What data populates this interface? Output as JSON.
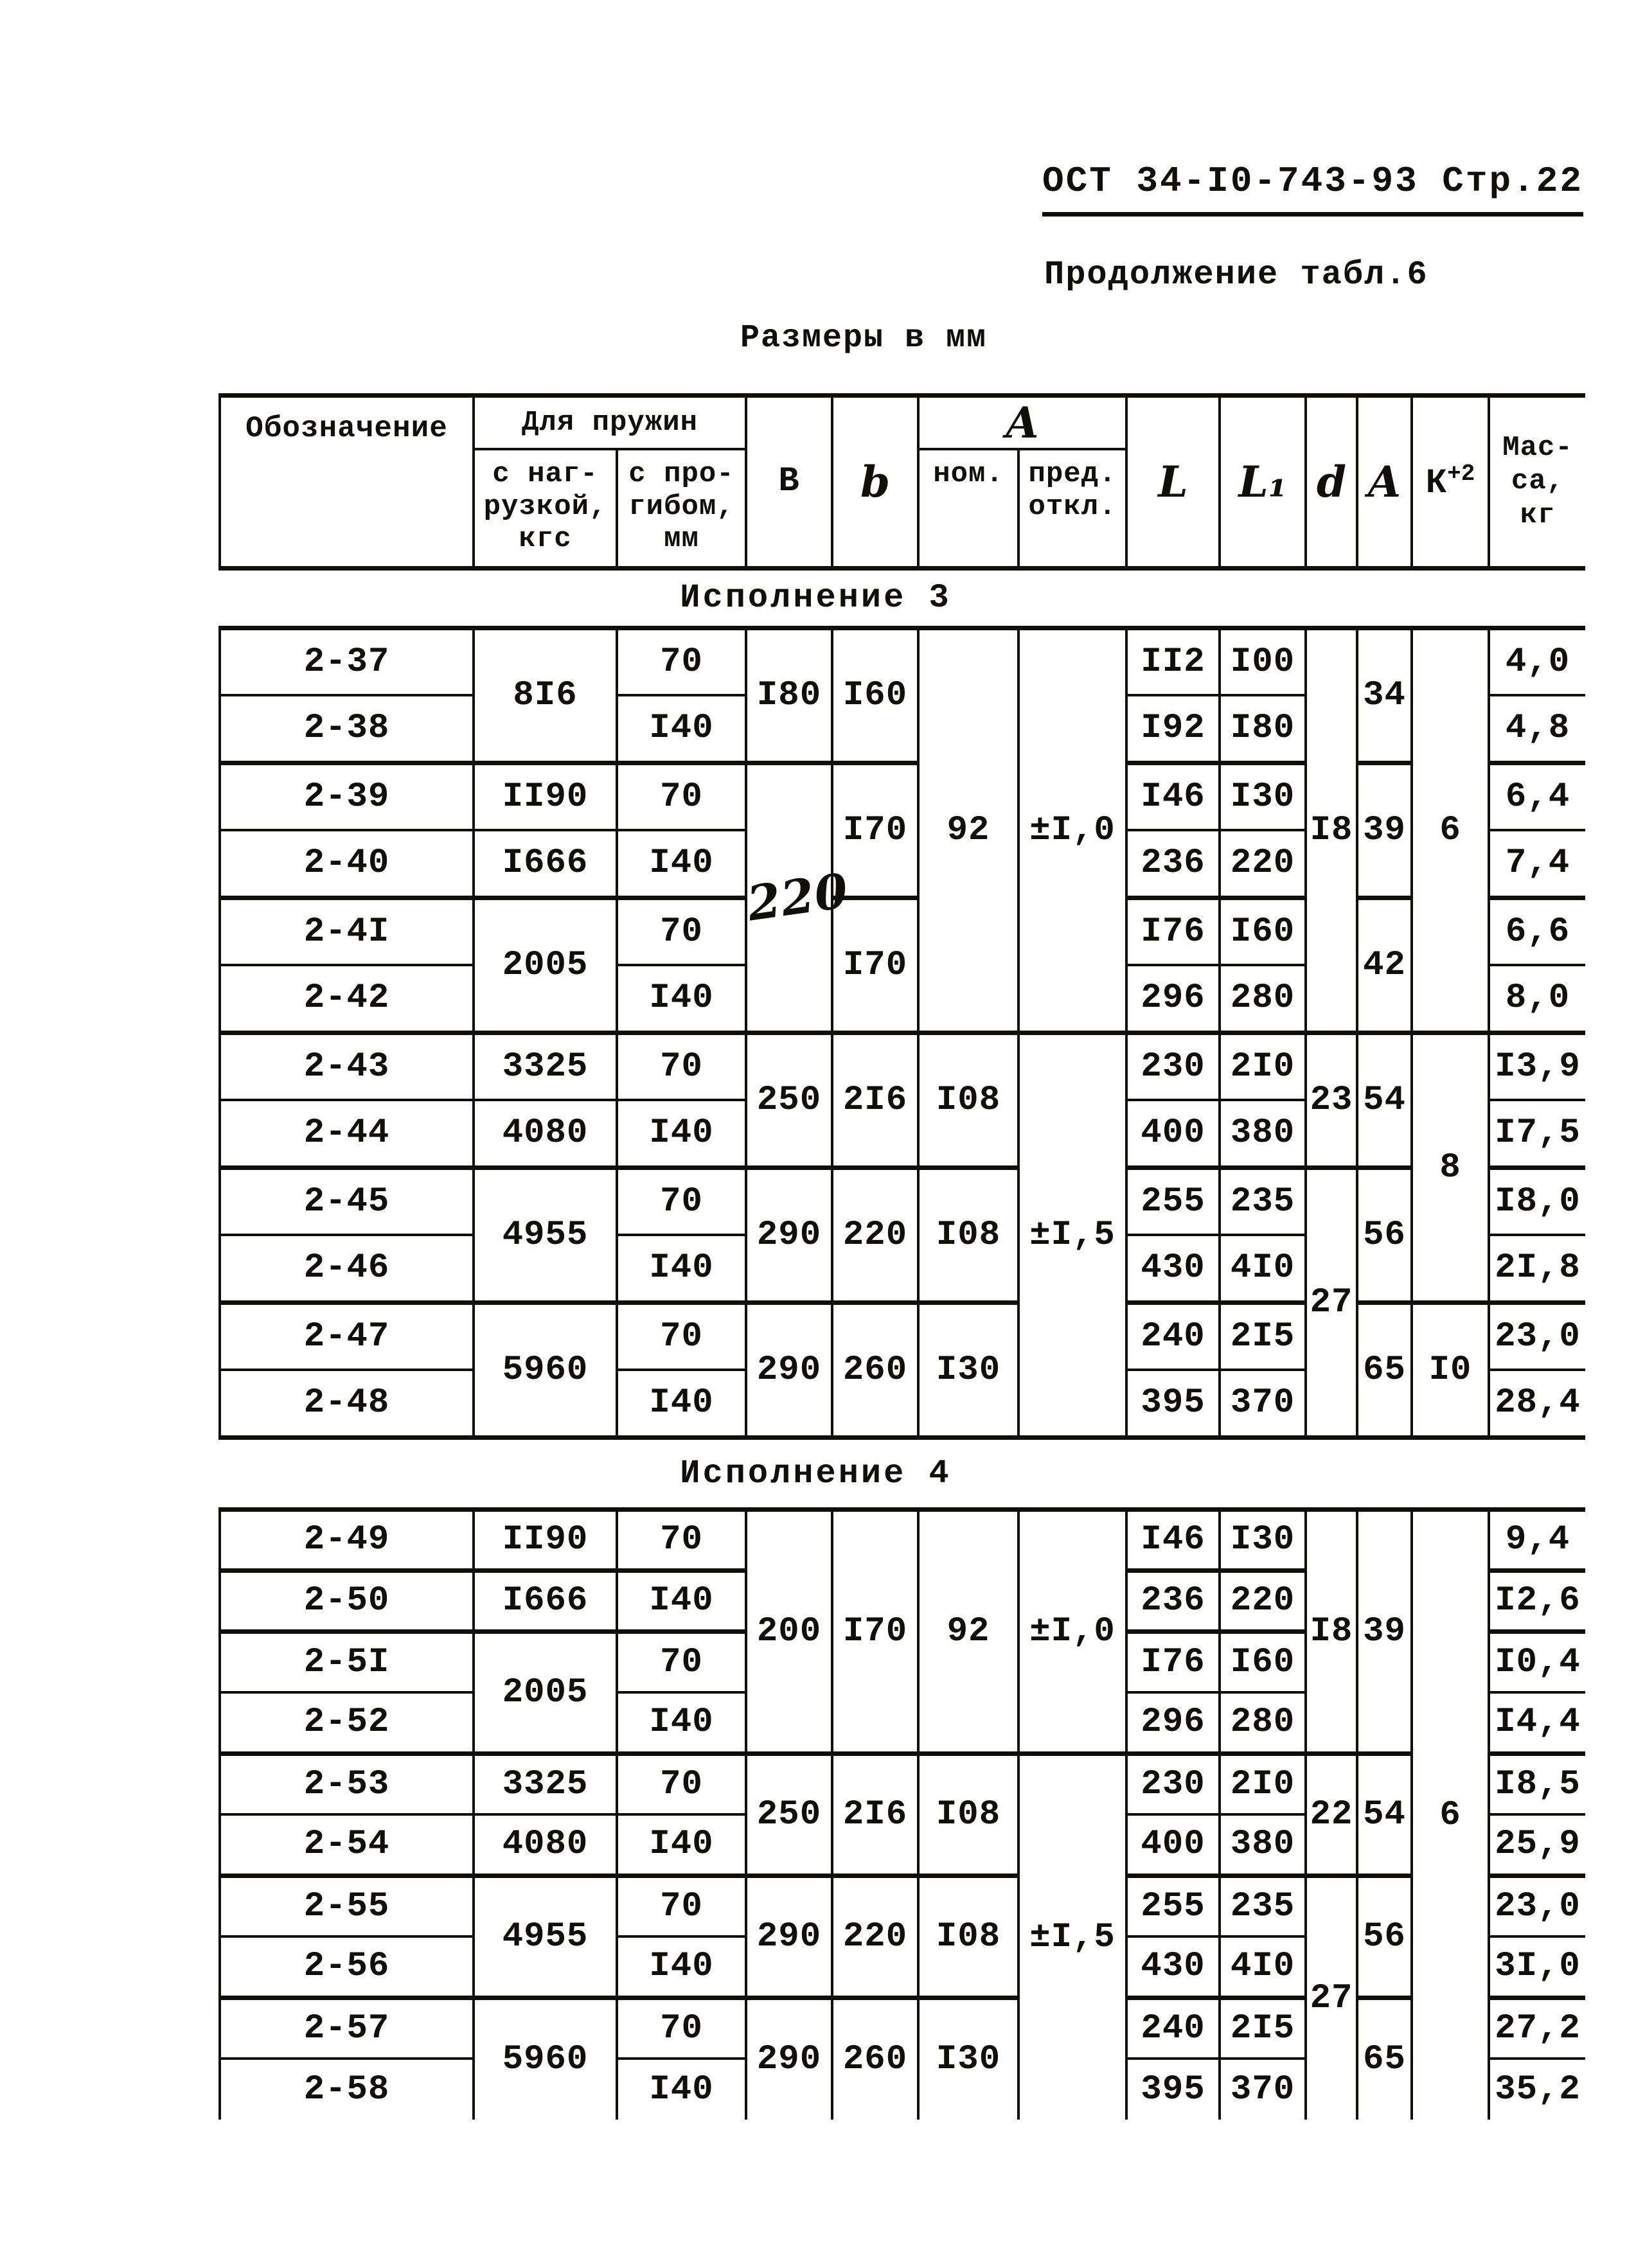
{
  "page": {
    "ref": "ОСТ 34-I0-743-93 Стр.22",
    "subtitle": "Продолжение табл.6",
    "units_note": "Размеры в мм"
  },
  "table": {
    "header": {
      "designation": "Обозначение",
      "springs_group": "Для пружин",
      "load": "с наг-\nрузкой,\nкгс",
      "deflection": "с про-\nгибом,\nмм",
      "B": "В",
      "b": "b",
      "A_group": "А",
      "nom": "ном.",
      "dev": "пред.\nоткл.",
      "L": "L",
      "L1": "L₁",
      "d": "d",
      "A": "A",
      "K": "К",
      "K_sup": "+2",
      "mass": "Мас-\nса,\nкг"
    },
    "sections": [
      {
        "title": "Исполнение 3",
        "rows": [
          {
            "t": "tk",
            "cells": [
              "2-37",
              {
                "v": "8I6",
                "rs": 2
              },
              "70",
              {
                "v": "I80",
                "rs": 2
              },
              {
                "v": "I60",
                "rs": 2
              },
              {
                "v": "92",
                "rs": 6
              },
              {
                "v": "±I,0",
                "rs": 6
              },
              "II2",
              "I00",
              {
                "v": "I8",
                "rs": 6
              },
              {
                "v": "34",
                "rs": 2
              },
              {
                "v": "6",
                "rs": 6
              },
              "4,0"
            ]
          },
          {
            "cells": [
              "2-38",
              "I40",
              "I92",
              "I80",
              "4,8"
            ]
          },
          {
            "t": "tk",
            "cells": [
              "2-39",
              "II90",
              "70",
              {
                "v": "220",
                "rs": 4,
                "hw": 1
              },
              {
                "v": "I70",
                "rs": 2
              },
              "I46",
              "I30",
              {
                "v": "39",
                "rs": 2
              },
              "6,4"
            ]
          },
          {
            "cells": [
              "2-40",
              "I666",
              "I40",
              "236",
              "220",
              "7,4"
            ]
          },
          {
            "t": "tk",
            "cells": [
              "2-4I",
              {
                "v": "2005",
                "rs": 2
              },
              "70",
              {
                "v": "I70",
                "rs": 2
              },
              "I76",
              "I60",
              {
                "v": "42",
                "rs": 2
              },
              "6,6"
            ]
          },
          {
            "cells": [
              "2-42",
              "I40",
              "296",
              "280",
              "8,0"
            ]
          },
          {
            "t": "tk",
            "cells": [
              "2-43",
              "3325",
              "70",
              {
                "v": "250",
                "rs": 2
              },
              {
                "v": "2I6",
                "rs": 2
              },
              {
                "v": "I08",
                "rs": 2
              },
              {
                "v": "±I,5",
                "rs": 6
              },
              "230",
              "2I0",
              {
                "v": "23",
                "rs": 2
              },
              {
                "v": "54",
                "rs": 2
              },
              {
                "v": "8",
                "rs": 4
              },
              "I3,9"
            ]
          },
          {
            "cells": [
              "2-44",
              "4080",
              "I40",
              "400",
              "380",
              "I7,5"
            ]
          },
          {
            "t": "tk",
            "cells": [
              "2-45",
              {
                "v": "4955",
                "rs": 2
              },
              "70",
              {
                "v": "290",
                "rs": 2
              },
              {
                "v": "220",
                "rs": 2
              },
              {
                "v": "I08",
                "rs": 2
              },
              "255",
              "235",
              {
                "v": "27",
                "rs": 4
              },
              {
                "v": "56",
                "rs": 2
              },
              "I8,0"
            ]
          },
          {
            "cells": [
              "2-46",
              "I40",
              "430",
              "4I0",
              "2I,8"
            ]
          },
          {
            "t": "tk",
            "cells": [
              "2-47",
              {
                "v": "5960",
                "rs": 2
              },
              "70",
              {
                "v": "290",
                "rs": 2
              },
              {
                "v": "260",
                "rs": 2
              },
              {
                "v": "I30",
                "rs": 2
              },
              "240",
              "2I5",
              {
                "v": "65",
                "rs": 2
              },
              {
                "v": "I0",
                "rs": 2
              },
              "23,0"
            ]
          },
          {
            "cells": [
              "2-48",
              "I40",
              "395",
              "370",
              "28,4"
            ]
          }
        ]
      },
      {
        "title": "Исполнение 4",
        "rows": [
          {
            "t": "tk",
            "cells": [
              "2-49",
              "II90",
              "70",
              {
                "v": "200",
                "rs": 4
              },
              {
                "v": "I70",
                "rs": 4
              },
              {
                "v": "92",
                "rs": 4
              },
              {
                "v": "±I,0",
                "rs": 4
              },
              "I46",
              "I30",
              {
                "v": "I8",
                "rs": 4
              },
              {
                "v": "39",
                "rs": 4
              },
              {
                "v": "6",
                "rs": 10
              },
              "9,4"
            ]
          },
          {
            "t": "tk",
            "cells": [
              "2-50",
              "I666",
              "I40",
              "236",
              "220",
              "I2,6"
            ]
          },
          {
            "t": "tk",
            "cells": [
              "2-5I",
              {
                "v": "2005",
                "rs": 2
              },
              "70",
              "I76",
              "I60",
              "I0,4"
            ]
          },
          {
            "cells": [
              "2-52",
              "I40",
              "296",
              "280",
              "I4,4"
            ]
          },
          {
            "t": "tk",
            "cells": [
              "2-53",
              "3325",
              "70",
              {
                "v": "250",
                "rs": 2
              },
              {
                "v": "2I6",
                "rs": 2
              },
              {
                "v": "I08",
                "rs": 2
              },
              {
                "v": "±I,5",
                "rs": 6
              },
              "230",
              "2I0",
              {
                "v": "22",
                "rs": 2
              },
              {
                "v": "54",
                "rs": 2
              },
              "I8,5"
            ]
          },
          {
            "cells": [
              "2-54",
              "4080",
              "I40",
              "400",
              "380",
              "25,9"
            ]
          },
          {
            "t": "tk",
            "cells": [
              "2-55",
              {
                "v": "4955",
                "rs": 2
              },
              "70",
              {
                "v": "290",
                "rs": 2
              },
              {
                "v": "220",
                "rs": 2
              },
              {
                "v": "I08",
                "rs": 2
              },
              "255",
              "235",
              {
                "v": "27",
                "rs": 4
              },
              {
                "v": "56",
                "rs": 2
              },
              "23,0"
            ]
          },
          {
            "cells": [
              "2-56",
              "I40",
              "430",
              "4I0",
              "3I,0"
            ]
          },
          {
            "t": "tk",
            "cells": [
              "2-57",
              {
                "v": "5960",
                "rs": 2
              },
              "70",
              {
                "v": "290",
                "rs": 2
              },
              {
                "v": "260",
                "rs": 2
              },
              {
                "v": "I30",
                "rs": 2
              },
              "240",
              "2I5",
              {
                "v": "65",
                "rs": 2
              },
              "27,2"
            ]
          },
          {
            "cells": [
              "2-58",
              "I40",
              "395",
              "370",
              "35,2"
            ]
          }
        ]
      }
    ]
  }
}
